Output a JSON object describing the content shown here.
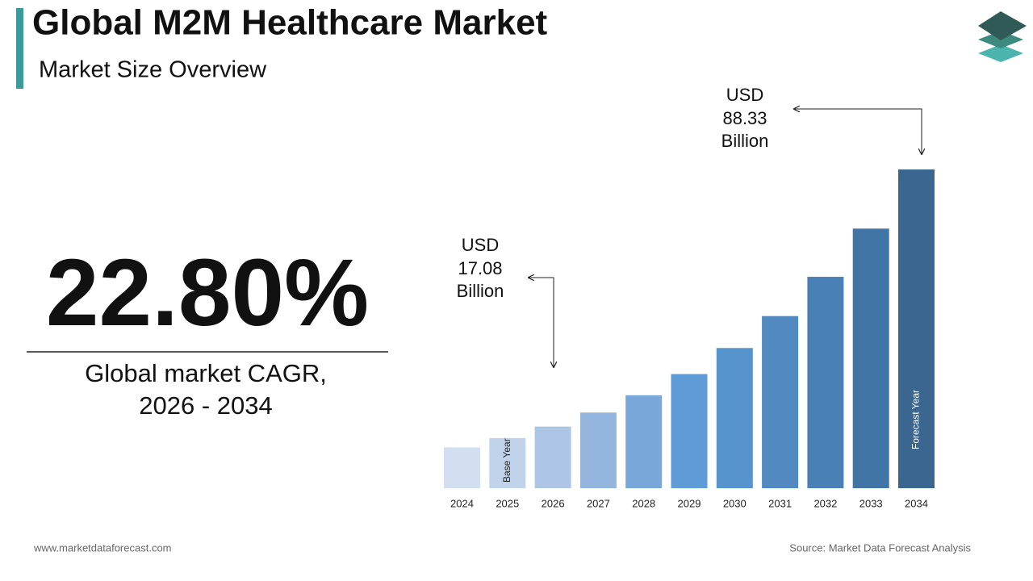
{
  "chart_data": {
    "type": "bar",
    "title": "Global M2M Healthcare Market",
    "subtitle": "Market Size Overview",
    "highlight": {
      "value": "22.80%",
      "caption_lines": [
        "Global market CAGR,",
        "2026 - 2034"
      ]
    },
    "categories": [
      "2024",
      "2025",
      "2026",
      "2027",
      "2028",
      "2029",
      "2030",
      "2031",
      "2032",
      "2033",
      "2034"
    ],
    "values": [
      11.33,
      13.91,
      17.08,
      20.97,
      25.76,
      31.63,
      38.85,
      47.7,
      58.58,
      71.94,
      88.33
    ],
    "colors": [
      "#d3dff0",
      "#c0d3ea",
      "#adc6e5",
      "#94b6de",
      "#7aa7da",
      "#5f9bd6",
      "#5793cd",
      "#5189c0",
      "#4a80b5",
      "#4175a6",
      "#3a6690"
    ],
    "bar_notes": [
      null,
      "Base Year",
      null,
      null,
      null,
      null,
      null,
      null,
      null,
      null,
      "Forecast Year"
    ],
    "annotations": [
      {
        "prefix": "USD",
        "value": 17.08,
        "suffix": "Billion"
      },
      {
        "prefix": "USD",
        "value": 88.33,
        "suffix": "Billion"
      }
    ],
    "footer_left": "www.marketdataforecast.com",
    "footer_right": "Source: Market Data Forecast Analysis"
  }
}
